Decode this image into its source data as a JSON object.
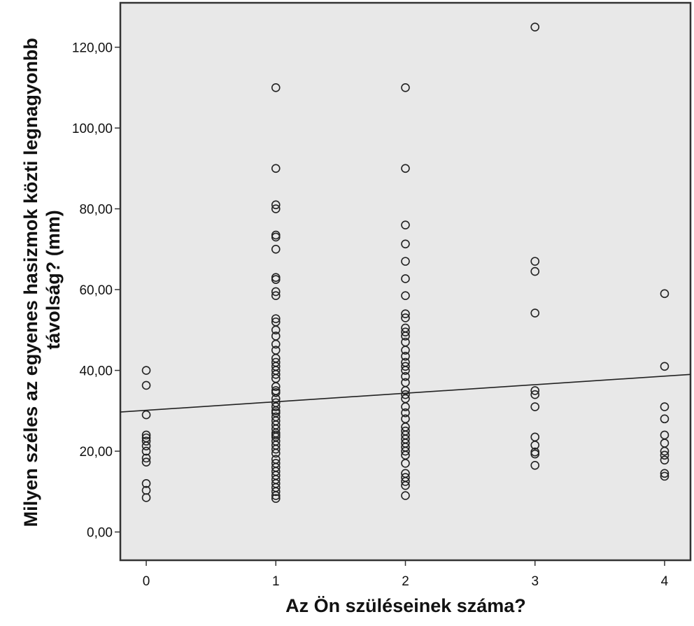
{
  "chart_data": {
    "type": "scatter",
    "xlabel": "Az Ön szüléseinek száma?",
    "ylabel_lines": [
      "Milyen széles az egyenes hasizmok közti legnagyonbb",
      "távolság? (mm)"
    ],
    "x_ticks": [
      0,
      1,
      2,
      3,
      4
    ],
    "x_tick_labels": [
      "0",
      "1",
      "2",
      "3",
      "4"
    ],
    "y_ticks": [
      0,
      20,
      40,
      60,
      80,
      100,
      120
    ],
    "y_tick_labels": [
      "0,00",
      "20,00",
      "40,00",
      "60,00",
      "80,00",
      "100,00",
      "120,00"
    ],
    "xlim": [
      -0.2,
      4.2
    ],
    "ylim": [
      -7,
      131
    ],
    "grid": false,
    "plot_background": "#e8e8e8",
    "marker_color": "#222222",
    "fit_line": {
      "x": [
        -0.2,
        4.2
      ],
      "y": [
        29.7,
        39.0
      ]
    },
    "points": [
      [
        0,
        40
      ],
      [
        0,
        36.3
      ],
      [
        0,
        29
      ],
      [
        0,
        24
      ],
      [
        0,
        23.3
      ],
      [
        0,
        22.5
      ],
      [
        0,
        21.3
      ],
      [
        0,
        20
      ],
      [
        0,
        18.3
      ],
      [
        0,
        17.3
      ],
      [
        0,
        12
      ],
      [
        0,
        10.3
      ],
      [
        0,
        8.5
      ],
      [
        1,
        110
      ],
      [
        1,
        90
      ],
      [
        1,
        81
      ],
      [
        1,
        80
      ],
      [
        1,
        73.5
      ],
      [
        1,
        73
      ],
      [
        1,
        70
      ],
      [
        1,
        63
      ],
      [
        1,
        62.5
      ],
      [
        1,
        59.5
      ],
      [
        1,
        58.5
      ],
      [
        1,
        52.8
      ],
      [
        1,
        52
      ],
      [
        1,
        50
      ],
      [
        1,
        48.5
      ],
      [
        1,
        46.5
      ],
      [
        1,
        45
      ],
      [
        1,
        43
      ],
      [
        1,
        42
      ],
      [
        1,
        41
      ],
      [
        1,
        40
      ],
      [
        1,
        39
      ],
      [
        1,
        38
      ],
      [
        1,
        36
      ],
      [
        1,
        35
      ],
      [
        1,
        34.5
      ],
      [
        1,
        33
      ],
      [
        1,
        32
      ],
      [
        1,
        31
      ],
      [
        1,
        30
      ],
      [
        1,
        29.5
      ],
      [
        1,
        28.5
      ],
      [
        1,
        27.5
      ],
      [
        1,
        26.5
      ],
      [
        1,
        25.5
      ],
      [
        1,
        24.5
      ],
      [
        1,
        24
      ],
      [
        1,
        23.5
      ],
      [
        1,
        22.5
      ],
      [
        1,
        21.5
      ],
      [
        1,
        20.5
      ],
      [
        1,
        19.5
      ],
      [
        1,
        18
      ],
      [
        1,
        17
      ],
      [
        1,
        16
      ],
      [
        1,
        15
      ],
      [
        1,
        14
      ],
      [
        1,
        13
      ],
      [
        1,
        12
      ],
      [
        1,
        11
      ],
      [
        1,
        10
      ],
      [
        1,
        9
      ],
      [
        1,
        8.3
      ],
      [
        2,
        110
      ],
      [
        2,
        90
      ],
      [
        2,
        76
      ],
      [
        2,
        71.3
      ],
      [
        2,
        67
      ],
      [
        2,
        62.7
      ],
      [
        2,
        58.5
      ],
      [
        2,
        54
      ],
      [
        2,
        53
      ],
      [
        2,
        50.5
      ],
      [
        2,
        49.5
      ],
      [
        2,
        48.5
      ],
      [
        2,
        47
      ],
      [
        2,
        45
      ],
      [
        2,
        43.5
      ],
      [
        2,
        42
      ],
      [
        2,
        41
      ],
      [
        2,
        40
      ],
      [
        2,
        38.5
      ],
      [
        2,
        37
      ],
      [
        2,
        35
      ],
      [
        2,
        34
      ],
      [
        2,
        33
      ],
      [
        2,
        31
      ],
      [
        2,
        29.5
      ],
      [
        2,
        28
      ],
      [
        2,
        26
      ],
      [
        2,
        25
      ],
      [
        2,
        24
      ],
      [
        2,
        23
      ],
      [
        2,
        22
      ],
      [
        2,
        21
      ],
      [
        2,
        20
      ],
      [
        2,
        19
      ],
      [
        2,
        17
      ],
      [
        2,
        14.5
      ],
      [
        2,
        13.5
      ],
      [
        2,
        12.5
      ],
      [
        2,
        11.5
      ],
      [
        2,
        9
      ],
      [
        3,
        125
      ],
      [
        3,
        67
      ],
      [
        3,
        64.5
      ],
      [
        3,
        54.2
      ],
      [
        3,
        35
      ],
      [
        3,
        34
      ],
      [
        3,
        31
      ],
      [
        3,
        23.5
      ],
      [
        3,
        21.5
      ],
      [
        3,
        19.8
      ],
      [
        3,
        19.3
      ],
      [
        3,
        16.5
      ],
      [
        4,
        59
      ],
      [
        4,
        41
      ],
      [
        4,
        31
      ],
      [
        4,
        28
      ],
      [
        4,
        24
      ],
      [
        4,
        22
      ],
      [
        4,
        20
      ],
      [
        4,
        19
      ],
      [
        4,
        17.8
      ],
      [
        4,
        14.5
      ],
      [
        4,
        13.8
      ]
    ]
  }
}
